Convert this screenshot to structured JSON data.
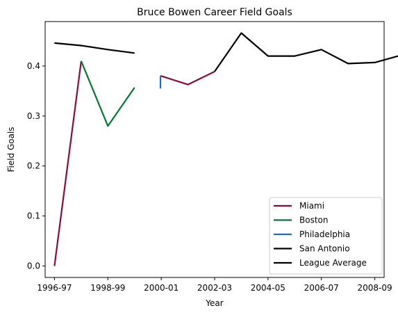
{
  "chart_data": {
    "type": "line",
    "title": "Bruce Bowen Career Field Goals",
    "xlabel": "Year",
    "ylabel": "Field Goals",
    "x_ticks": [
      "1996-97",
      "1998-99",
      "2000-01",
      "2002-03",
      "2004-05",
      "2006-07",
      "2008-09"
    ],
    "y_ticks": [
      "0.0",
      "0.1",
      "0.2",
      "0.3",
      "0.4"
    ],
    "xlim": [
      1995.65,
      2008.35
    ],
    "ylim": [
      -0.023,
      0.489
    ],
    "grid": false,
    "legend_position": "lower right",
    "series": [
      {
        "name": "Miami",
        "color": "#8b0a3c",
        "points": [
          {
            "x": 1996,
            "y": 0.0
          },
          {
            "x": 1997,
            "y": 0.41
          }
        ]
      },
      {
        "name": "Miami",
        "color": "#8b0a3c",
        "points": [
          {
            "x": 1999.97,
            "y": 0.38
          },
          {
            "x": 2000,
            "y": 0.38
          },
          {
            "x": 2001,
            "y": 0.363
          },
          {
            "x": 2002,
            "y": 0.389
          }
        ]
      },
      {
        "name": "Boston",
        "color": "#007a33",
        "points": [
          {
            "x": 1997,
            "y": 0.41
          },
          {
            "x": 1998,
            "y": 0.28
          },
          {
            "x": 1999,
            "y": 0.357
          }
        ]
      },
      {
        "name": "Philadelphia",
        "color": "#1d6fb0",
        "points": [
          {
            "x": 1999.97,
            "y": 0.355
          },
          {
            "x": 1999.97,
            "y": 0.38
          }
        ]
      },
      {
        "name": "San Antonio",
        "color": "#000000",
        "points": [
          {
            "x": 2002,
            "y": 0.389
          },
          {
            "x": 2003,
            "y": 0.466
          },
          {
            "x": 2004,
            "y": 0.42
          },
          {
            "x": 2005,
            "y": 0.42
          },
          {
            "x": 2006,
            "y": 0.433
          },
          {
            "x": 2007,
            "y": 0.405
          },
          {
            "x": 2008,
            "y": 0.407
          },
          {
            "x": 2009,
            "y": 0.422
          }
        ]
      },
      {
        "name": "League Average",
        "color": "#000000",
        "points": [
          {
            "x": 1996,
            "y": 0.446
          },
          {
            "x": 1997,
            "y": 0.441
          },
          {
            "x": 1998,
            "y": 0.433
          },
          {
            "x": 1999,
            "y": 0.426
          }
        ]
      }
    ],
    "legend": [
      {
        "label": "Miami",
        "color": "#8b0a3c"
      },
      {
        "label": "Boston",
        "color": "#007a33"
      },
      {
        "label": "Philadelphia",
        "color": "#1d6fb0"
      },
      {
        "label": "San Antonio",
        "color": "#000000"
      },
      {
        "label": "League Average",
        "color": "#000000"
      }
    ]
  }
}
